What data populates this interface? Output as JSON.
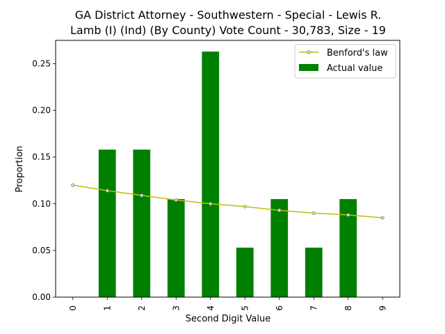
{
  "chart_data": {
    "type": "bar",
    "title_line1": "GA District Attorney - Southwestern - Special - Lewis R.",
    "title_line2": "Lamb (I) (Ind) (By County) Vote Count - 30,783, Size - 19",
    "xlabel": "Second Digit Value",
    "ylabel": "Proportion",
    "categories": [
      "0",
      "1",
      "2",
      "3",
      "4",
      "5",
      "6",
      "7",
      "8",
      "9"
    ],
    "ylim": [
      0,
      0.275
    ],
    "yticks": [
      "0.00",
      "0.05",
      "0.10",
      "0.15",
      "0.20",
      "0.25"
    ],
    "series": [
      {
        "name": "Actual value",
        "kind": "bar",
        "color": "#008000",
        "values": [
          0.0,
          0.158,
          0.158,
          0.105,
          0.263,
          0.053,
          0.105,
          0.053,
          0.105,
          0.0
        ]
      },
      {
        "name": "Benford's law",
        "kind": "line",
        "color": "#bfbf00",
        "values": [
          0.12,
          0.114,
          0.109,
          0.104,
          0.1,
          0.097,
          0.093,
          0.09,
          0.088,
          0.085
        ]
      }
    ],
    "legend_position": "top-right",
    "grid": false
  }
}
